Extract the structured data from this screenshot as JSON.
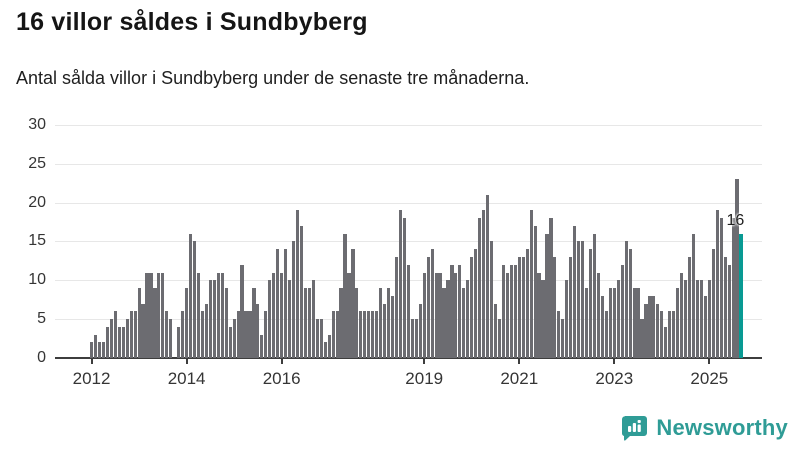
{
  "header": {
    "title": "16 villor såldes i Sundbyberg",
    "subtitle": "Antal sålda villor i Sundbyberg under de senaste tre månaderna."
  },
  "chart_data": {
    "type": "bar",
    "title": "16 villor såldes i Sundbyberg",
    "subtitle": "Antal sålda villor i Sundbyberg under de senaste tre månaderna.",
    "unit": "sålda villor (rullande tre månader)",
    "start_month": "2012-01",
    "end_month": "2025-09",
    "grid": true,
    "ylim": [
      0,
      30
    ],
    "yticks": [
      0,
      5,
      10,
      15,
      20,
      25,
      30
    ],
    "xticks": [
      {
        "label": "2012",
        "month_offset": 0
      },
      {
        "label": "2014",
        "month_offset": 24
      },
      {
        "label": "2016",
        "month_offset": 48
      },
      {
        "label": "2019",
        "month_offset": 84
      },
      {
        "label": "2021",
        "month_offset": 108
      },
      {
        "label": "2023",
        "month_offset": 132
      },
      {
        "label": "2025",
        "month_offset": 156
      }
    ],
    "bar_color": "#6c6c71",
    "values": [
      2,
      3,
      2,
      2,
      4,
      5,
      6,
      4,
      4,
      5,
      6,
      6,
      9,
      7,
      11,
      11,
      9,
      11,
      11,
      6,
      5,
      0,
      4,
      6,
      9,
      16,
      15,
      11,
      6,
      7,
      10,
      10,
      11,
      11,
      9,
      4,
      5,
      6,
      12,
      6,
      6,
      9,
      7,
      3,
      6,
      10,
      11,
      14,
      11,
      14,
      10,
      15,
      19,
      17,
      9,
      9,
      10,
      5,
      5,
      2,
      3,
      6,
      6,
      9,
      16,
      11,
      14,
      9,
      6,
      6,
      6,
      6,
      6,
      9,
      7,
      9,
      8,
      13,
      19,
      18,
      12,
      5,
      5,
      7,
      11,
      13,
      14,
      11,
      11,
      9,
      10,
      12,
      11,
      12,
      9,
      10,
      13,
      14,
      18,
      19,
      21,
      15,
      7,
      5,
      12,
      11,
      12,
      12,
      13,
      13,
      14,
      19,
      17,
      11,
      10,
      16,
      18,
      13,
      6,
      5,
      10,
      13,
      17,
      15,
      15,
      9,
      14,
      16,
      11,
      8,
      6,
      9,
      9,
      10,
      12,
      15,
      14,
      9,
      9,
      5,
      7,
      8,
      8,
      7,
      6,
      4,
      6,
      6,
      9,
      11,
      10,
      13,
      16,
      10,
      10,
      8,
      10,
      14,
      19,
      18,
      13,
      12,
      18,
      23,
      16
    ],
    "highlight": {
      "index": 164,
      "value": 16,
      "color": "#089a93"
    },
    "annotation": {
      "text": "16"
    }
  },
  "footer": {
    "brand": "Newsworthy",
    "brand_color": "#2f9c96",
    "icon": "newsworthy-logo-icon"
  }
}
